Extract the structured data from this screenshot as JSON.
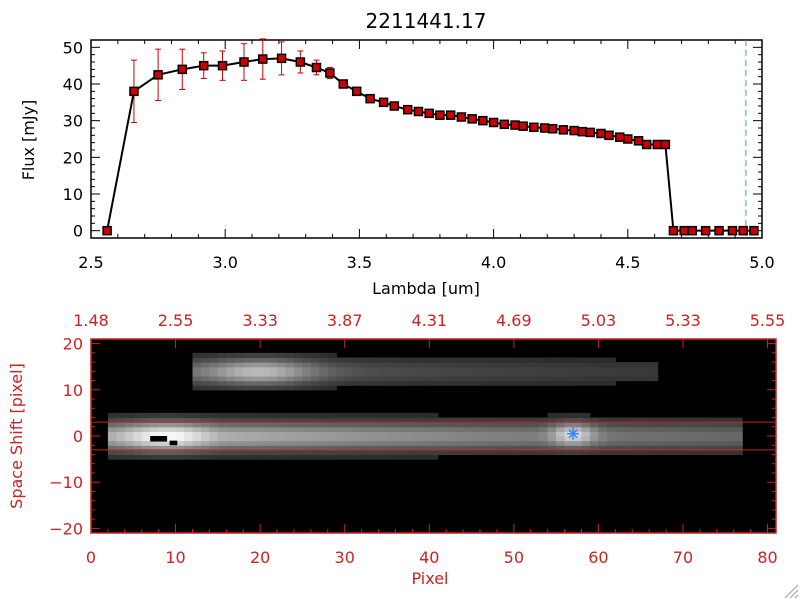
{
  "chart_data": [
    {
      "type": "line",
      "title": "2211441.17",
      "xlabel": "Lambda [um]",
      "ylabel": "Flux [mJy]",
      "xlim": [
        2.5,
        5.0
      ],
      "ylim": [
        -2,
        52
      ],
      "xticks": [
        2.5,
        3.0,
        3.5,
        4.0,
        4.5,
        5.0
      ],
      "xtick_labels": [
        "2.5",
        "3.0",
        "3.5",
        "4.0",
        "4.5",
        "5.0"
      ],
      "yticks": [
        0,
        10,
        20,
        30,
        40,
        50
      ],
      "ytick_labels": [
        "0",
        "10",
        "20",
        "30",
        "40",
        "50"
      ],
      "grid": false,
      "colors": {
        "line": "#000000",
        "marker": "#cc0000",
        "error": "#cc0000",
        "cutoff": "#33aa88"
      },
      "cutoff_line_x": 4.94,
      "x": [
        2.56,
        2.66,
        2.75,
        2.84,
        2.92,
        2.99,
        3.07,
        3.14,
        3.21,
        3.28,
        3.34,
        3.39,
        3.44,
        3.49,
        3.54,
        3.59,
        3.63,
        3.68,
        3.72,
        3.76,
        3.8,
        3.84,
        3.88,
        3.92,
        3.96,
        4.0,
        4.04,
        4.08,
        4.11,
        4.15,
        4.19,
        4.22,
        4.26,
        4.3,
        4.33,
        4.36,
        4.4,
        4.43,
        4.47,
        4.5,
        4.54,
        4.57,
        4.61,
        4.64,
        4.67,
        4.71,
        4.74,
        4.79,
        4.84,
        4.89,
        4.93,
        4.97
      ],
      "y": [
        0,
        38,
        42.5,
        44,
        45,
        45,
        46,
        46.8,
        47,
        46,
        44.5,
        43,
        40,
        38,
        36,
        35,
        34,
        33,
        32.5,
        32,
        31.5,
        31.5,
        31,
        30.5,
        30,
        29.5,
        29,
        28.8,
        28.5,
        28.2,
        28,
        27.8,
        27.5,
        27.3,
        27,
        26.8,
        26.5,
        26,
        25.5,
        25,
        24.5,
        23.5,
        23.5,
        23.5,
        0,
        0,
        0,
        0,
        0,
        0,
        0,
        0
      ],
      "yerr": [
        0,
        8.5,
        7,
        5.5,
        3.5,
        4,
        5,
        5.5,
        4.5,
        3,
        2,
        1.5,
        1,
        1,
        1,
        0.5,
        0.5,
        0.5,
        0.5,
        0.5,
        0.5,
        0.5,
        0.5,
        0.5,
        0.5,
        0.5,
        0.5,
        0.5,
        0.5,
        0.5,
        0.5,
        0.5,
        0.5,
        0.5,
        0.5,
        0.5,
        0.5,
        0.5,
        0.5,
        0.5,
        0.5,
        0.5,
        0.5,
        0.5,
        0,
        0,
        0,
        0,
        0,
        0,
        0,
        0
      ]
    },
    {
      "type": "heatmap",
      "xlabel": "Pixel",
      "ylabel": "Space Shift [pixel]",
      "xlim": [
        0,
        81
      ],
      "ylim": [
        -21,
        21
      ],
      "xticks": [
        0,
        10,
        20,
        30,
        40,
        50,
        60,
        70,
        80
      ],
      "xtick_labels": [
        "0",
        "10",
        "20",
        "30",
        "40",
        "50",
        "60",
        "70",
        "80"
      ],
      "yticks": [
        -20,
        -10,
        0,
        10,
        20
      ],
      "ytick_labels": [
        "−20",
        "−10",
        "0",
        "10",
        "20"
      ],
      "top_axis_ticks": [
        0,
        10,
        20,
        30,
        40,
        50,
        60,
        70,
        80
      ],
      "top_axis_labels": [
        "1.48",
        "2.55",
        "3.33",
        "3.87",
        "4.31",
        "4.69",
        "5.03",
        "5.33",
        "5.55"
      ],
      "extraction_aperture_y": [
        -3,
        3
      ],
      "source_marker": {
        "x": 57,
        "y": 0.5,
        "icon": "star-icon",
        "color": "#3388ff"
      },
      "frame_color": "#cc2222",
      "colormap": "grayscale"
    }
  ]
}
